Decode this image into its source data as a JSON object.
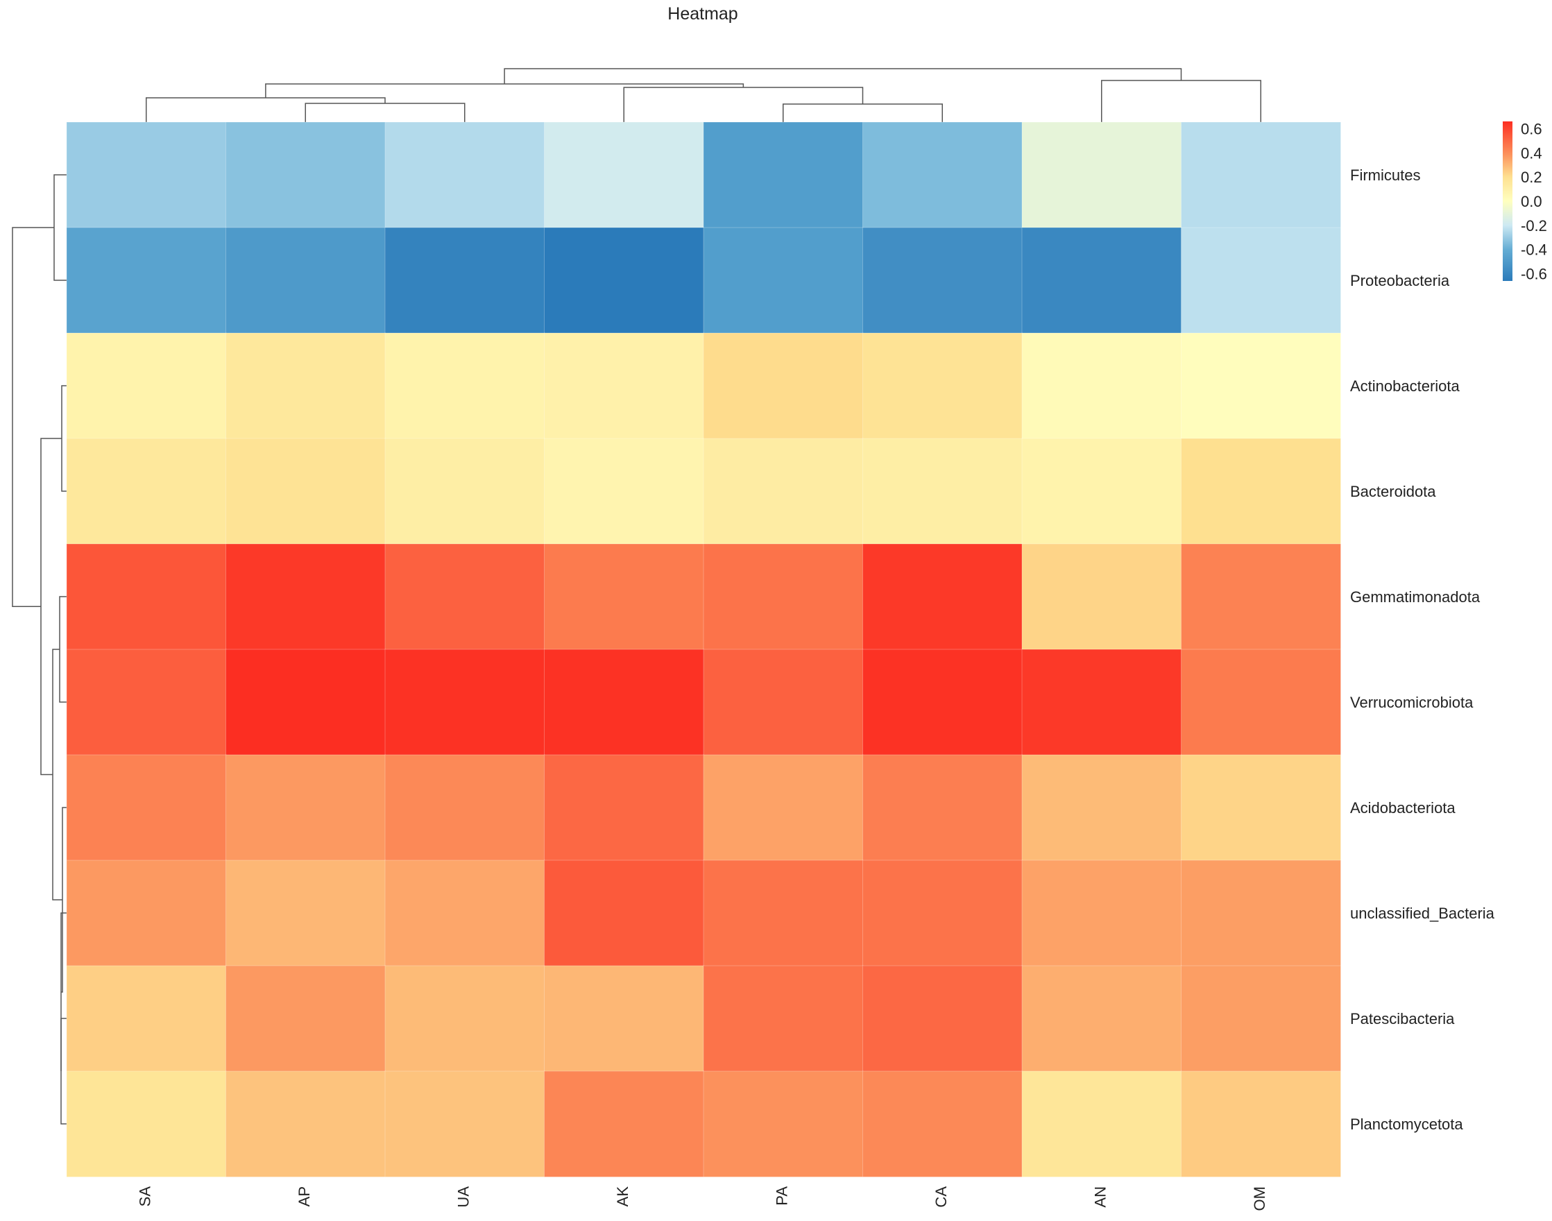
{
  "chart_data": {
    "type": "heatmap",
    "title": "Heatmap",
    "columns": [
      "SA",
      "AP",
      "UA",
      "AK",
      "PA",
      "CA",
      "AN",
      "OM"
    ],
    "rows": [
      "Firmicutes",
      "Proteobacteria",
      "Actinobacteriota",
      "Bacteroidota",
      "Gemmatimonadota",
      "Verrucomicrobiota",
      "Acidobacteriota",
      "unclassified_Bacteria",
      "Patescibacteria",
      "Planctomycetota"
    ],
    "values": [
      [
        -0.3,
        -0.33,
        -0.25,
        -0.18,
        -0.48,
        -0.35,
        -0.1,
        -0.24
      ],
      [
        -0.45,
        -0.5,
        -0.62,
        -0.66,
        -0.48,
        -0.56,
        -0.59,
        -0.23
      ],
      [
        0.08,
        0.15,
        0.08,
        0.09,
        0.21,
        0.18,
        0.03,
        0.01
      ],
      [
        0.15,
        0.18,
        0.11,
        0.07,
        0.12,
        0.11,
        0.08,
        0.2
      ],
      [
        0.55,
        0.63,
        0.52,
        0.45,
        0.47,
        0.63,
        0.23,
        0.43
      ],
      [
        0.53,
        0.66,
        0.65,
        0.65,
        0.52,
        0.65,
        0.63,
        0.45
      ],
      [
        0.43,
        0.37,
        0.41,
        0.5,
        0.35,
        0.44,
        0.29,
        0.23
      ],
      [
        0.37,
        0.3,
        0.34,
        0.54,
        0.47,
        0.47,
        0.35,
        0.36
      ],
      [
        0.24,
        0.37,
        0.29,
        0.3,
        0.47,
        0.5,
        0.32,
        0.36
      ],
      [
        0.17,
        0.27,
        0.27,
        0.42,
        0.39,
        0.41,
        0.16,
        0.25
      ]
    ],
    "color_scale": {
      "min": -0.66,
      "max": 0.66,
      "stops": [
        {
          "value": -0.66,
          "color": "#2b7bba"
        },
        {
          "value": -0.4,
          "color": "#64add4"
        },
        {
          "value": -0.2,
          "color": "#cde9f3"
        },
        {
          "value": 0.0,
          "color": "#ffffbf"
        },
        {
          "value": 0.2,
          "color": "#fee090"
        },
        {
          "value": 0.4,
          "color": "#fc8d59"
        },
        {
          "value": 0.66,
          "color": "#fc2e22"
        }
      ]
    },
    "legend": {
      "position": "top-right",
      "ticks": [
        "0.6",
        "0.4",
        "0.2",
        "0.0",
        "-0.2",
        "-0.4",
        "-0.6"
      ],
      "tick_values": [
        0.6,
        0.4,
        0.2,
        0.0,
        -0.2,
        -0.4,
        -0.6
      ]
    },
    "column_dendrogram_order": [
      "SA",
      "AP",
      "UA",
      "AK",
      "PA",
      "CA",
      "AN",
      "OM"
    ],
    "row_dendrogram_order": [
      "Firmicutes",
      "Proteobacteria",
      "Actinobacteriota",
      "Bacteroidota",
      "Gemmatimonadota",
      "Verrucomicrobiota",
      "Acidobacteriota",
      "unclassified_Bacteria",
      "Patescibacteria",
      "Planctomycetota"
    ],
    "grid": false
  }
}
